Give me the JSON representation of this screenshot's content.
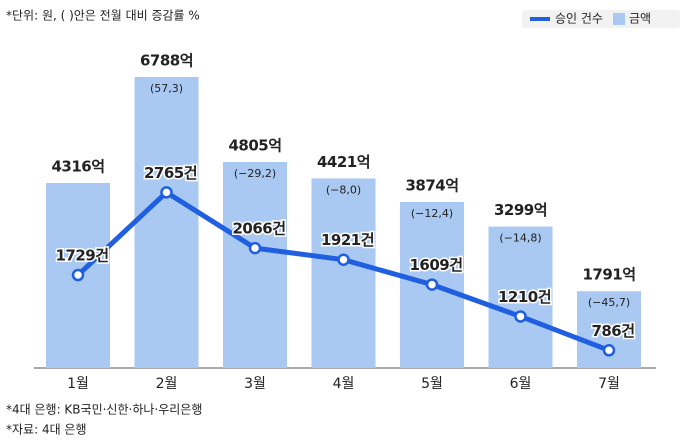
{
  "chart_data": {
    "type": "bar",
    "note": "*단위: 원, ( )안은 전월 대비 증감률 %",
    "categories": [
      "1월",
      "2월",
      "3월",
      "4월",
      "5월",
      "6월",
      "7월"
    ],
    "series": [
      {
        "name": "금액",
        "type": "bar",
        "color": "#a9c9f2",
        "values": [
          4316,
          6788,
          4805,
          4421,
          3874,
          3299,
          1791
        ],
        "value_labels": [
          "4316억",
          "6788억",
          "4805억",
          "4421억",
          "3874억",
          "3299억",
          "1791억"
        ],
        "change_values": [
          null,
          57.3,
          -29.2,
          -8.0,
          -12.4,
          -14.8,
          -45.7
        ],
        "change_labels": [
          null,
          "(57,3)",
          "(−29,2)",
          "(−8,0)",
          "(−12,4)",
          "(−14,8)",
          "(−45,7)"
        ]
      },
      {
        "name": "승인 건수",
        "type": "line",
        "color": "#1f5fe0",
        "values": [
          1729,
          2765,
          2066,
          1921,
          1609,
          1210,
          786
        ],
        "value_labels": [
          "1729건",
          "2765건",
          "2066건",
          "1921건",
          "1609건",
          "1210건",
          "786건"
        ]
      }
    ],
    "legend": "top-right",
    "footnotes": [
      "*4대 은행: KB국민·신한·하나·우리은행",
      "*자료: 4대 은행"
    ]
  }
}
